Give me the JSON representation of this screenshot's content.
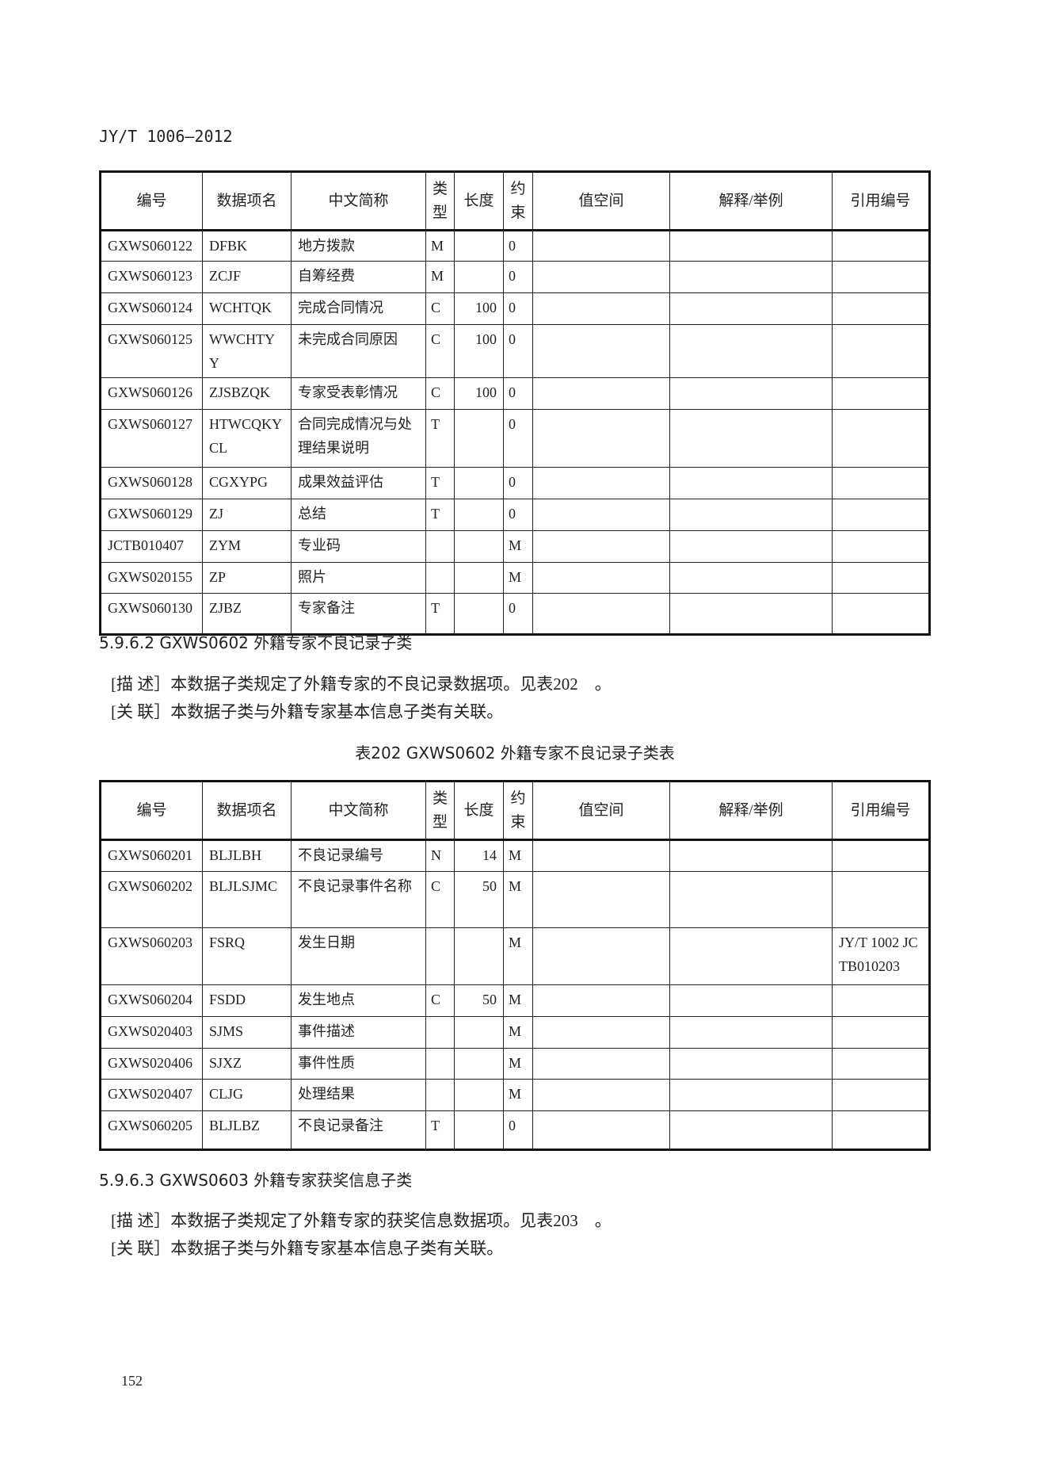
{
  "header": {
    "doc_code": "JY/T 1006—2012"
  },
  "columns": [
    "编号",
    "数据项名",
    "中文简称",
    "类型",
    "长度",
    "约束",
    "值空间",
    "解释/举例",
    "引用编号"
  ],
  "table1": {
    "rows": [
      [
        "GXWS060122",
        "DFBK",
        "地方拨款",
        "M",
        "",
        "0",
        "",
        "",
        ""
      ],
      [
        "GXWS060123",
        "ZCJF",
        "自筹经费",
        "M",
        "",
        "0",
        "",
        "",
        ""
      ],
      [
        "GXWS060124",
        "WCHTQK",
        "完成合同情况",
        "C",
        "100",
        "0",
        "",
        "",
        ""
      ],
      [
        "GXWS060125",
        "WWCHTYY",
        "未完成合同原因",
        "C",
        "100",
        "0",
        "",
        "",
        ""
      ],
      [
        "GXWS060126",
        "ZJSBZQK",
        "专家受表彰情况",
        "C",
        "100",
        "0",
        "",
        "",
        ""
      ],
      [
        "GXWS060127",
        "HTWCQKYCL",
        "合同完成情况与处理结果说明",
        "T",
        "",
        "0",
        "",
        "",
        ""
      ],
      [
        "GXWS060128",
        "CGXYPG",
        "成果效益评估",
        "T",
        "",
        "0",
        "",
        "",
        ""
      ],
      [
        "GXWS060129",
        "ZJ",
        "总结",
        "T",
        "",
        "0",
        "",
        "",
        ""
      ],
      [
        "JCTB010407",
        "ZYM",
        "专业码",
        "",
        "",
        "M",
        "",
        "",
        ""
      ],
      [
        "GXWS020155",
        "ZP",
        "照片",
        "",
        "",
        "M",
        "",
        "",
        ""
      ],
      [
        "GXWS060130",
        "ZJBZ",
        "专家备注",
        "T",
        "",
        "0",
        "",
        "",
        ""
      ]
    ]
  },
  "section1": {
    "heading": "5.9.6.2  GXWS0602 外籍专家不良记录子类",
    "desc": "[描 述］本数据子类规定了外籍专家的不良记录数据项。见表202　。",
    "rel": "[关 联］本数据子类与外籍专家基本信息子类有关联。",
    "table_caption": "表202  GXWS0602 外籍专家不良记录子类表"
  },
  "table2": {
    "rows": [
      [
        "GXWS060201",
        "BLJLBH",
        "不良记录编号",
        "N",
        "14",
        "M",
        "",
        "",
        ""
      ],
      [
        "GXWS060202",
        "BLJLSJMC",
        "不良记录事件名称",
        "C",
        "50",
        "M",
        "",
        "",
        ""
      ],
      [
        "GXWS060203",
        "FSRQ",
        "发生日期",
        "",
        "",
        "M",
        "",
        "",
        "JY/T 1002 JCTB010203"
      ],
      [
        "GXWS060204",
        "FSDD",
        "发生地点",
        "C",
        "50",
        "M",
        "",
        "",
        ""
      ],
      [
        "GXWS020403",
        "SJMS",
        "事件描述",
        "",
        "",
        "M",
        "",
        "",
        ""
      ],
      [
        "GXWS020406",
        "SJXZ",
        "事件性质",
        "",
        "",
        "M",
        "",
        "",
        ""
      ],
      [
        "GXWS020407",
        "CLJG",
        "处理结果",
        "",
        "",
        "M",
        "",
        "",
        ""
      ],
      [
        "GXWS060205",
        "BLJLBZ",
        "不良记录备注",
        "T",
        "",
        "0",
        "",
        "",
        ""
      ]
    ]
  },
  "section2": {
    "heading": "5.9.6.3  GXWS0603 外籍专家获奖信息子类",
    "desc": "[描 述］本数据子类规定了外籍专家的获奖信息数据项。见表203　。",
    "rel": "[关 联］本数据子类与外籍专家基本信息子类有关联。"
  },
  "footer": {
    "page_number": "152"
  }
}
